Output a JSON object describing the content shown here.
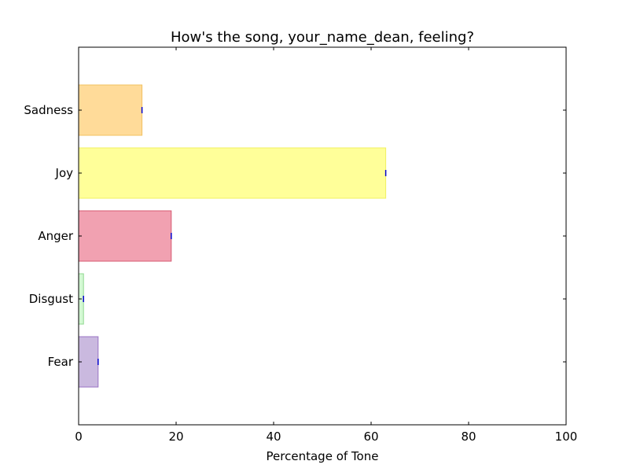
{
  "chart_data": {
    "type": "bar",
    "orientation": "horizontal",
    "title": "How's the song, your_name_dean, feeling?",
    "xlabel": "Percentage of Tone",
    "ylabel": "",
    "xlim": [
      0,
      100
    ],
    "xticks": [
      0,
      20,
      40,
      60,
      80,
      100
    ],
    "grid": false,
    "categories": [
      "Sadness",
      "Joy",
      "Anger",
      "Disgust",
      "Fear"
    ],
    "values": [
      13,
      63,
      19,
      1,
      4
    ],
    "colors": [
      "#FFA500",
      "#FFFF00",
      "#DC143C",
      "#90EE90",
      "#7B4FAE"
    ],
    "edge_colors": [
      "#F0C060",
      "#F0F060",
      "#D65A72",
      "#90D890",
      "#9A74C4"
    ],
    "error_marker_color": "#0000CC"
  }
}
